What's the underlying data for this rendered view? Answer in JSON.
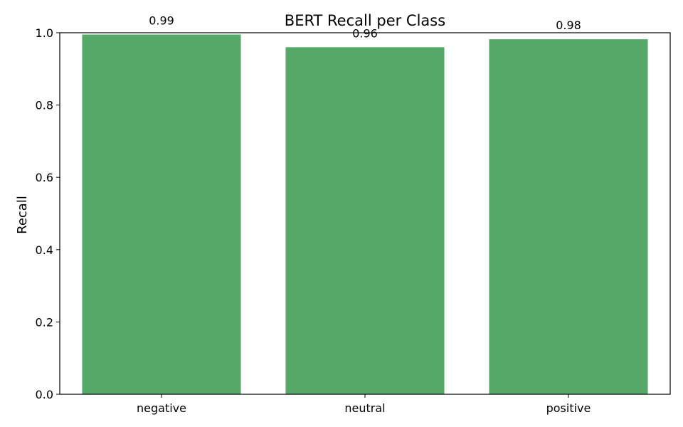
{
  "chart_data": {
    "type": "bar",
    "title": "BERT Recall per Class",
    "xlabel": "",
    "ylabel": "Recall",
    "categories": [
      "negative",
      "neutral",
      "positive"
    ],
    "values": [
      0.995,
      0.96,
      0.982
    ],
    "data_labels": [
      "0.99",
      "0.96",
      "0.98"
    ],
    "yticks": [
      0.0,
      0.2,
      0.4,
      0.6,
      0.8,
      1.0
    ],
    "ytick_labels": [
      "0.0",
      "0.2",
      "0.4",
      "0.6",
      "0.8",
      "1.0"
    ],
    "ylim": [
      0,
      1
    ],
    "grid": false,
    "bar_color": "#55a868"
  }
}
